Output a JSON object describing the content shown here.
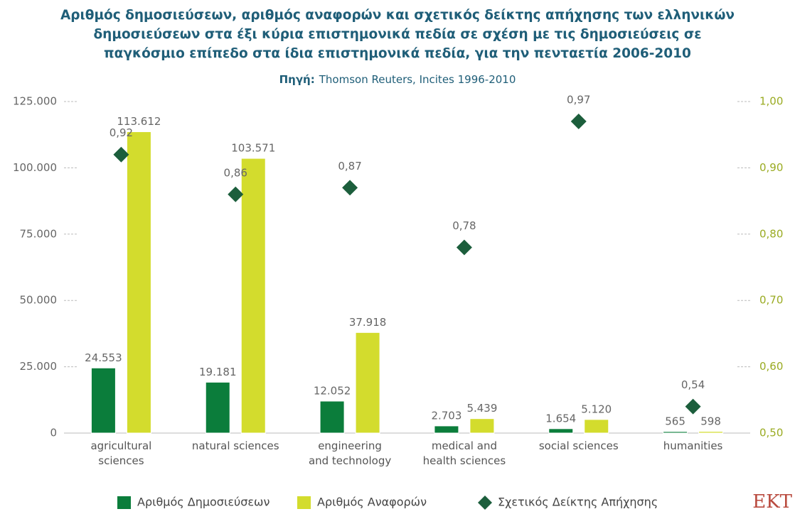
{
  "chart_data": {
    "type": "bar",
    "title": "Αριθμός δημοσιεύσεων, αριθμός αναφορών και σχετικός δείκτης απήχησης των ελληνικών\nδημοσιεύσεων στα έξι κύρια επιστημονικά πεδία σε σχέση με τις δημοσιεύσεις σε\nπαγκόσμιο επίπεδο στα ίδια επιστημονικά πεδία, για την πενταετία 2006-2010",
    "source_label": "Πηγή:",
    "source": "Thomson Reuters, Incites 1996-2010",
    "logo": "EKT",
    "categories": [
      "agricultural\nsciences",
      "natural sciences",
      "engineering\nand technology",
      "medical and\nhealth sciences",
      "social sciences",
      "humanities"
    ],
    "series": [
      {
        "name": "Αριθμός Δημοσιεύσεων",
        "color": "#0b7d3b",
        "kind": "bar",
        "values": [
          24553,
          19181,
          12052,
          2703,
          1654,
          565
        ],
        "value_labels": [
          "24.553",
          "19.181",
          "12.052",
          "2.703",
          "1.654",
          "565"
        ]
      },
      {
        "name": "Αριθμός Αναφορών",
        "color": "#d3dc2d",
        "kind": "bar",
        "values": [
          113612,
          103571,
          37918,
          5439,
          5120,
          598
        ],
        "value_labels": [
          "113.612",
          "103.571",
          "37.918",
          "5.439",
          "5.120",
          "598"
        ]
      },
      {
        "name": "Σχετικός Δείκτης Απήχησης",
        "color": "#1c5e3c",
        "kind": "diamond",
        "axis": "y2",
        "values": [
          0.92,
          0.86,
          0.87,
          0.78,
          0.97,
          0.54
        ],
        "value_labels": [
          "0,92",
          "0,86",
          "0,87",
          "0,78",
          "0,97",
          "0,54"
        ]
      }
    ],
    "ylim": [
      0,
      125000
    ],
    "yticks": [
      0,
      {
        "value": 25000,
        "label": "25.000"
      },
      {
        "value": 50000,
        "label": "50.000"
      },
      {
        "value": 75000,
        "label": "75.000"
      },
      {
        "value": 100000,
        "label": "100.000"
      },
      {
        "value": 125000,
        "label": "125.000"
      }
    ],
    "y2lim": [
      0.5,
      1.0
    ],
    "y2ticks": [
      {
        "value": 0.5,
        "label": "0,50"
      },
      {
        "value": 0.6,
        "label": "0,60"
      },
      {
        "value": 0.7,
        "label": "0,70"
      },
      {
        "value": 0.8,
        "label": "0,80"
      },
      {
        "value": 0.9,
        "label": "0,90"
      },
      {
        "value": 1.0,
        "label": "1,00"
      }
    ],
    "grid": false,
    "legend": "bottom"
  }
}
